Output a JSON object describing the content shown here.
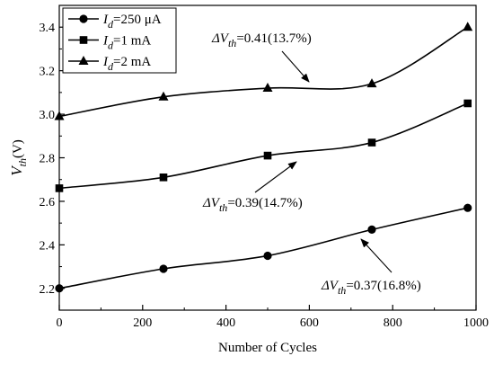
{
  "chart_data": {
    "type": "line",
    "xlabel": "Number of Cycles",
    "ylabel": "V_th(V)",
    "xlim": [
      0,
      1000
    ],
    "ylim": [
      2.1,
      3.5
    ],
    "x_ticks": [
      "0",
      "200",
      "400",
      "600",
      "800",
      "1000"
    ],
    "y_ticks": [
      "2.2",
      "2.4",
      "2.6",
      "2.8",
      "3.0",
      "3.2",
      "3.4"
    ],
    "grid": false,
    "legend_position": "top-left",
    "series": [
      {
        "name": "Id=250 μA",
        "legend": {
          "pre": "I",
          "sub": "d",
          "post": "=250 μA"
        },
        "marker": "circle",
        "x": [
          0,
          250,
          500,
          750,
          980
        ],
        "y": [
          2.2,
          2.29,
          2.35,
          2.47,
          2.57
        ]
      },
      {
        "name": "Id=1 mA",
        "legend": {
          "pre": "I",
          "sub": "d",
          "post": "=1 mA"
        },
        "marker": "square",
        "x": [
          0,
          250,
          500,
          750,
          980
        ],
        "y": [
          2.66,
          2.71,
          2.81,
          2.87,
          3.05
        ]
      },
      {
        "name": "Id=2 mA",
        "legend": {
          "pre": "I",
          "sub": "d",
          "post": "=2 mA"
        },
        "marker": "triangle",
        "x": [
          0,
          250,
          500,
          750,
          980
        ],
        "y": [
          2.99,
          3.08,
          3.12,
          3.14,
          3.4
        ]
      }
    ],
    "annotations": [
      {
        "pre": "ΔV",
        "sub": "th",
        "post": "=0.41(13.7%)"
      },
      {
        "pre": "ΔV",
        "sub": "th",
        "post": "=0.39(14.7%)"
      },
      {
        "pre": "ΔV",
        "sub": "th",
        "post": "=0.37(16.8%)"
      }
    ],
    "colors": {
      "line": "#000000",
      "background": "#ffffff"
    }
  }
}
